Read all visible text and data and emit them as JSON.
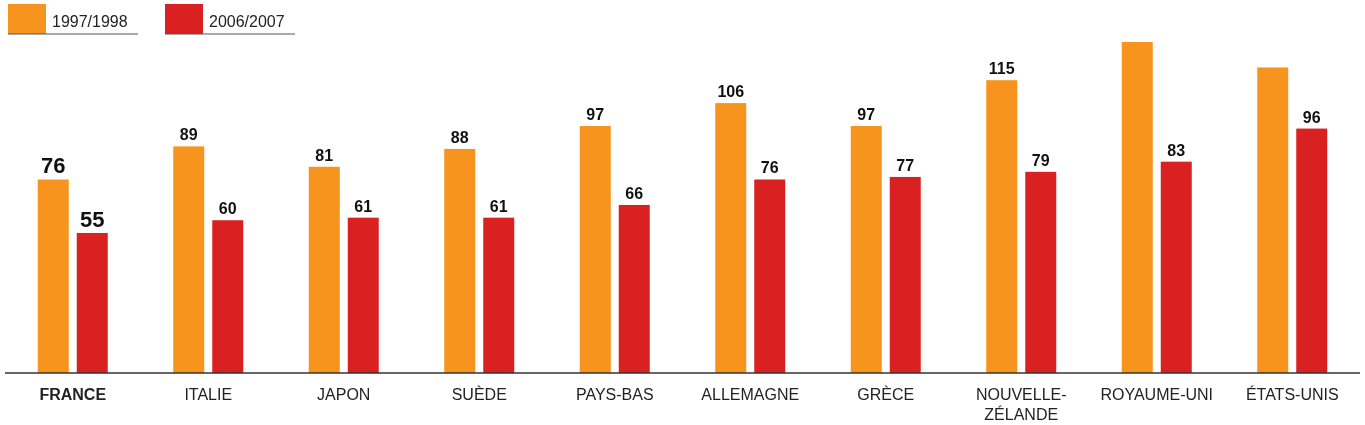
{
  "chart_data": {
    "type": "bar",
    "categories": [
      "FRANCE",
      "ITALIE",
      "JAPON",
      "SUÈDE",
      "PAYS-BAS",
      "ALLEMAGNE",
      "GRÈCE",
      "NOUVELLE-ZÉLANDE",
      "ROYAUME-UNI",
      "ÉTATS-UNIS"
    ],
    "series": [
      {
        "name": "1997/1998",
        "color": "#f7941d",
        "values": [
          76,
          89,
          81,
          88,
          97,
          106,
          97,
          115,
          130,
          120
        ],
        "value_labels": [
          "76",
          "89",
          "81",
          "88",
          "97",
          "106",
          "97",
          "115",
          null,
          null
        ]
      },
      {
        "name": "2006/2007",
        "color": "#d92121",
        "values": [
          55,
          60,
          61,
          61,
          66,
          76,
          77,
          79,
          83,
          96
        ],
        "value_labels": [
          "55",
          "60",
          "61",
          "61",
          "66",
          "76",
          "77",
          "79",
          "83",
          "96"
        ]
      }
    ],
    "tick_labels": "x",
    "legend": "top left"
  }
}
